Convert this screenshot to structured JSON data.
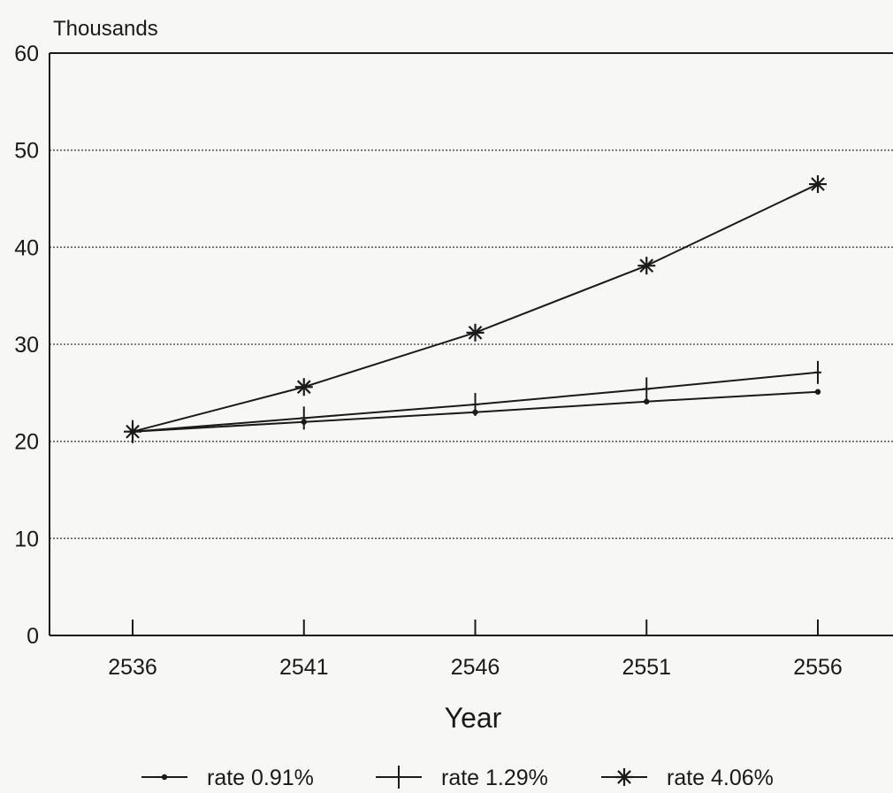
{
  "chart_data": {
    "type": "line",
    "title": "",
    "ylabel": "Thousands",
    "xlabel": "Year",
    "x": [
      "2536",
      "2541",
      "2546",
      "2551",
      "2556"
    ],
    "ylim": [
      0,
      60
    ],
    "yticks": [
      "0",
      "10",
      "20",
      "30",
      "40",
      "50",
      "60"
    ],
    "grid": true,
    "legend_position": "bottom",
    "series": [
      {
        "name": "rate 0.91%",
        "marker": "dot",
        "values": [
          21.0,
          22.0,
          23.0,
          24.1,
          25.1
        ]
      },
      {
        "name": "rate 1.29%",
        "marker": "plus",
        "values": [
          21.0,
          22.4,
          23.8,
          25.4,
          27.1
        ]
      },
      {
        "name": "rate 4.06%",
        "marker": "star",
        "values": [
          21.0,
          25.6,
          31.2,
          38.1,
          46.5
        ]
      }
    ],
    "colors": {
      "line": "#1a1a1a",
      "grid": "#5a5a5a",
      "background": "#f7f7f5"
    }
  }
}
